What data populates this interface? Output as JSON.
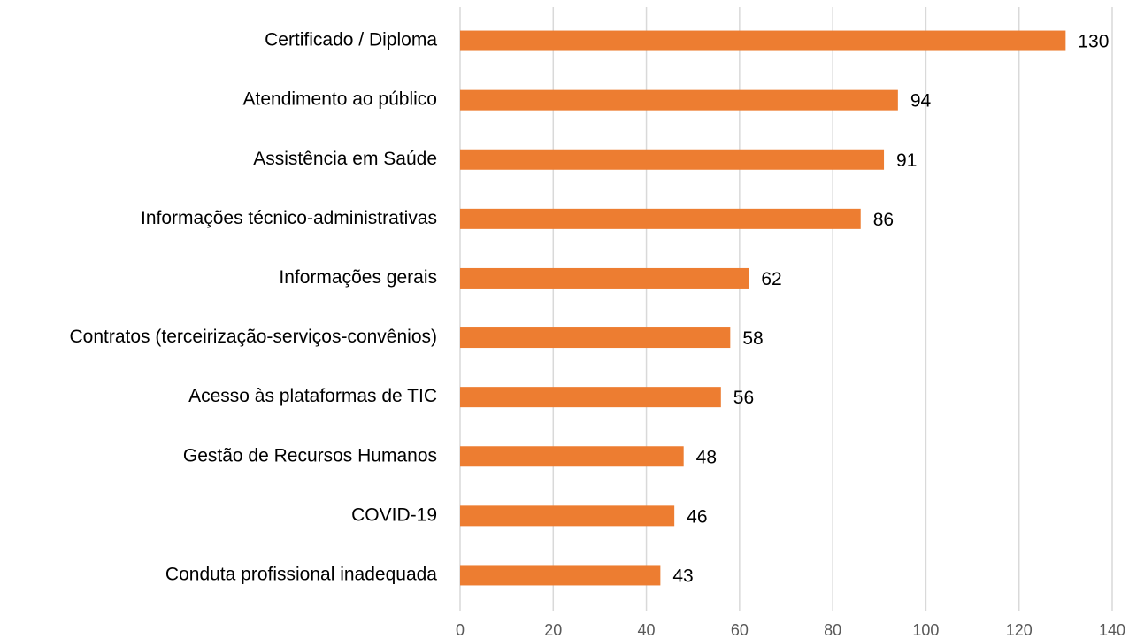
{
  "chart_data": {
    "type": "bar",
    "orientation": "horizontal",
    "categories": [
      "Certificado / Diploma",
      "Atendimento ao público",
      "Assistência em Saúde",
      "Informações técnico-administrativas",
      "Informações gerais",
      "Contratos (terceirização-serviços-convênios)",
      "Acesso às plataformas de TIC",
      "Gestão de Recursos Humanos",
      "COVID-19",
      "Conduta profissional inadequada"
    ],
    "values": [
      130,
      94,
      91,
      86,
      62,
      58,
      56,
      48,
      46,
      43
    ],
    "color": "#ed7d31",
    "xlim": [
      0,
      140
    ],
    "xticks": [
      0,
      20,
      40,
      60,
      80,
      100,
      120,
      140
    ],
    "grid": true
  }
}
